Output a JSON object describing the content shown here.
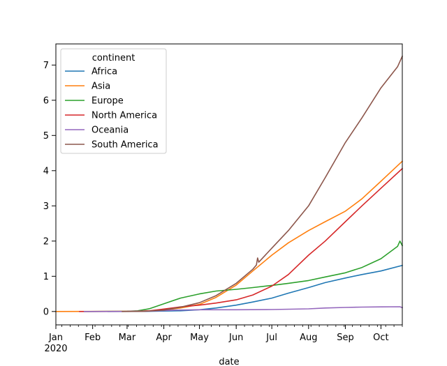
{
  "chart_data": {
    "type": "line",
    "xlabel": "date",
    "ylabel": "",
    "x_range": [
      "2020-01-01",
      "2020-10-19"
    ],
    "ylim": [
      -0.38,
      7.6
    ],
    "grid": false,
    "legend": {
      "title": "continent",
      "placement": "top-left"
    },
    "x_ticks": [
      {
        "date": "2020-01-01",
        "label": "Jan",
        "sublabel": "2020"
      },
      {
        "date": "2020-02-01",
        "label": "Feb"
      },
      {
        "date": "2020-03-01",
        "label": "Mar"
      },
      {
        "date": "2020-04-01",
        "label": "Apr"
      },
      {
        "date": "2020-05-01",
        "label": "May"
      },
      {
        "date": "2020-06-01",
        "label": "Jun"
      },
      {
        "date": "2020-07-01",
        "label": "Jul"
      },
      {
        "date": "2020-08-01",
        "label": "Aug"
      },
      {
        "date": "2020-09-01",
        "label": "Sep"
      },
      {
        "date": "2020-10-01",
        "label": "Oct"
      }
    ],
    "y_ticks": [
      0,
      1,
      2,
      3,
      4,
      5,
      6,
      7
    ],
    "series": [
      {
        "name": "Africa",
        "color": "#1f77b4",
        "points": [
          [
            "2020-02-14",
            0
          ],
          [
            "2020-03-15",
            0.003
          ],
          [
            "2020-04-15",
            0.02
          ],
          [
            "2020-05-01",
            0.05
          ],
          [
            "2020-05-15",
            0.1
          ],
          [
            "2020-06-01",
            0.18
          ],
          [
            "2020-06-15",
            0.27
          ],
          [
            "2020-07-01",
            0.38
          ],
          [
            "2020-07-15",
            0.52
          ],
          [
            "2020-08-01",
            0.68
          ],
          [
            "2020-08-15",
            0.82
          ],
          [
            "2020-09-01",
            0.95
          ],
          [
            "2020-09-15",
            1.05
          ],
          [
            "2020-10-01",
            1.15
          ],
          [
            "2020-10-19",
            1.31
          ]
        ]
      },
      {
        "name": "Asia",
        "color": "#ff7f0e",
        "points": [
          [
            "2020-01-01",
            0
          ],
          [
            "2020-02-15",
            0.005
          ],
          [
            "2020-03-15",
            0.01
          ],
          [
            "2020-04-01",
            0.04
          ],
          [
            "2020-04-15",
            0.1
          ],
          [
            "2020-05-01",
            0.2
          ],
          [
            "2020-05-15",
            0.4
          ],
          [
            "2020-06-01",
            0.75
          ],
          [
            "2020-06-15",
            1.15
          ],
          [
            "2020-07-01",
            1.6
          ],
          [
            "2020-07-15",
            1.95
          ],
          [
            "2020-08-01",
            2.3
          ],
          [
            "2020-08-15",
            2.55
          ],
          [
            "2020-09-01",
            2.85
          ],
          [
            "2020-09-15",
            3.2
          ],
          [
            "2020-10-01",
            3.7
          ],
          [
            "2020-10-19",
            4.27
          ]
        ]
      },
      {
        "name": "Europe",
        "color": "#2ca02c",
        "points": [
          [
            "2020-01-25",
            0
          ],
          [
            "2020-03-01",
            0.005
          ],
          [
            "2020-03-10",
            0.02
          ],
          [
            "2020-03-20",
            0.08
          ],
          [
            "2020-04-01",
            0.22
          ],
          [
            "2020-04-15",
            0.38
          ],
          [
            "2020-05-01",
            0.5
          ],
          [
            "2020-05-15",
            0.58
          ],
          [
            "2020-06-01",
            0.63
          ],
          [
            "2020-06-15",
            0.68
          ],
          [
            "2020-07-01",
            0.74
          ],
          [
            "2020-07-15",
            0.8
          ],
          [
            "2020-08-01",
            0.88
          ],
          [
            "2020-08-15",
            0.98
          ],
          [
            "2020-09-01",
            1.1
          ],
          [
            "2020-09-15",
            1.25
          ],
          [
            "2020-10-01",
            1.5
          ],
          [
            "2020-10-15",
            1.85
          ],
          [
            "2020-10-17",
            2.0
          ],
          [
            "2020-10-19",
            1.87
          ]
        ]
      },
      {
        "name": "North America",
        "color": "#d62728",
        "points": [
          [
            "2020-01-21",
            0
          ],
          [
            "2020-03-01",
            0.003
          ],
          [
            "2020-03-20",
            0.02
          ],
          [
            "2020-04-01",
            0.07
          ],
          [
            "2020-04-15",
            0.13
          ],
          [
            "2020-05-01",
            0.18
          ],
          [
            "2020-05-15",
            0.24
          ],
          [
            "2020-06-01",
            0.33
          ],
          [
            "2020-06-15",
            0.47
          ],
          [
            "2020-07-01",
            0.72
          ],
          [
            "2020-07-15",
            1.05
          ],
          [
            "2020-08-01",
            1.6
          ],
          [
            "2020-08-15",
            2.0
          ],
          [
            "2020-09-01",
            2.55
          ],
          [
            "2020-09-15",
            3.0
          ],
          [
            "2020-10-01",
            3.5
          ],
          [
            "2020-10-19",
            4.06
          ]
        ]
      },
      {
        "name": "Oceania",
        "color": "#9467bd",
        "points": [
          [
            "2020-01-25",
            0
          ],
          [
            "2020-03-01",
            0.002
          ],
          [
            "2020-03-20",
            0.01
          ],
          [
            "2020-04-10",
            0.04
          ],
          [
            "2020-05-01",
            0.05
          ],
          [
            "2020-06-01",
            0.05
          ],
          [
            "2020-07-01",
            0.055
          ],
          [
            "2020-08-01",
            0.075
          ],
          [
            "2020-08-15",
            0.1
          ],
          [
            "2020-09-01",
            0.115
          ],
          [
            "2020-09-15",
            0.125
          ],
          [
            "2020-10-01",
            0.13
          ],
          [
            "2020-10-17",
            0.135
          ],
          [
            "2020-10-19",
            0.11
          ]
        ]
      },
      {
        "name": "South America",
        "color": "#8c564b",
        "points": [
          [
            "2020-02-26",
            0
          ],
          [
            "2020-03-15",
            0.005
          ],
          [
            "2020-04-01",
            0.04
          ],
          [
            "2020-04-15",
            0.12
          ],
          [
            "2020-05-01",
            0.25
          ],
          [
            "2020-05-15",
            0.45
          ],
          [
            "2020-06-01",
            0.8
          ],
          [
            "2020-06-15",
            1.2
          ],
          [
            "2020-06-18",
            1.32
          ],
          [
            "2020-06-19",
            1.52
          ],
          [
            "2020-06-20",
            1.4
          ],
          [
            "2020-07-01",
            1.8
          ],
          [
            "2020-07-15",
            2.3
          ],
          [
            "2020-08-01",
            3.0
          ],
          [
            "2020-08-15",
            3.8
          ],
          [
            "2020-09-01",
            4.8
          ],
          [
            "2020-09-15",
            5.5
          ],
          [
            "2020-10-01",
            6.35
          ],
          [
            "2020-10-15",
            6.95
          ],
          [
            "2020-10-19",
            7.25
          ]
        ]
      }
    ]
  }
}
